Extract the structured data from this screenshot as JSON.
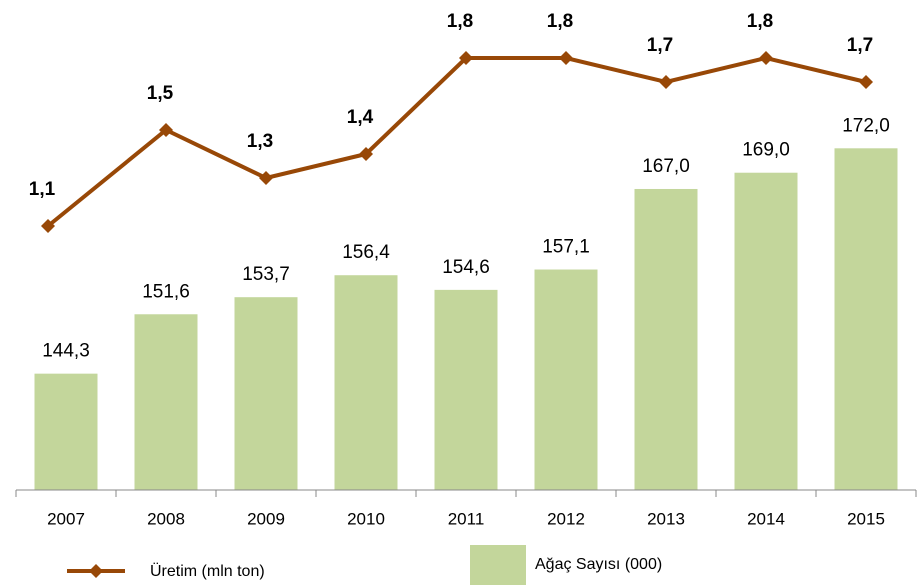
{
  "chart_data": {
    "type": "bar_line",
    "categories": [
      "2007",
      "2008",
      "2009",
      "2010",
      "2011",
      "2012",
      "2013",
      "2014",
      "2015"
    ],
    "series": [
      {
        "name": "Üretim (mln ton)",
        "type": "line",
        "axis": "y2",
        "color": "#984807",
        "values": [
          1.1,
          1.5,
          1.3,
          1.4,
          1.8,
          1.8,
          1.7,
          1.8,
          1.7
        ],
        "value_labels": [
          "1,1",
          "1,5",
          "1,3",
          "1,4",
          "1,8",
          "1,8",
          "1,7",
          "1,8",
          "1,7"
        ]
      },
      {
        "name": "Ağaç Sayısı (000)",
        "type": "bar",
        "color": "#c3d69b",
        "values": [
          144.3,
          151.6,
          153.7,
          156.4,
          154.6,
          157.1,
          167.0,
          169.0,
          172.0
        ],
        "value_labels": [
          "144,3",
          "151,6",
          "153,7",
          "156,4",
          "154,6",
          "157,1",
          "167,0",
          "169,0",
          "172,0"
        ]
      }
    ],
    "ylim": [
      130,
      189
    ],
    "y2lim": [
      0,
      2
    ]
  }
}
